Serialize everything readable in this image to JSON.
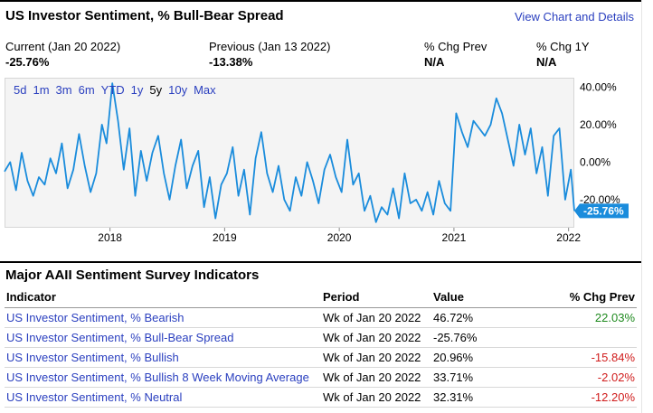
{
  "header": {
    "title": "US Investor Sentiment, % Bull-Bear Spread",
    "view_link": "View Chart and Details"
  },
  "stats": [
    {
      "label": "Current (Jan 20 2022)",
      "value": "-25.76%"
    },
    {
      "label": "Previous (Jan 13 2022)",
      "value": "-13.38%"
    },
    {
      "label": "% Chg Prev",
      "value": "N/A"
    },
    {
      "label": "% Chg 1Y",
      "value": "N/A"
    }
  ],
  "ranges": [
    "5d",
    "1m",
    "3m",
    "6m",
    "YTD",
    "1y",
    "5y",
    "10y",
    "Max"
  ],
  "active_range": "5y",
  "chart_data": {
    "type": "line",
    "x_tick_labels": [
      "2018",
      "2019",
      "2020",
      "2021",
      "2022"
    ],
    "y_tick_labels": [
      "40.00%",
      "20.00%",
      "0.00%",
      "-20.00%"
    ],
    "ylim": [
      -35,
      45
    ],
    "grid": false,
    "line_color": "#1a8cdc",
    "last_value_label": "-25.76%",
    "series": [
      {
        "x": [
          2017.08,
          2017.13,
          2017.18,
          2017.23,
          2017.28,
          2017.33,
          2017.38,
          2017.43,
          2017.48,
          2017.53,
          2017.58,
          2017.63,
          2017.68,
          2017.73,
          2017.78,
          2017.83,
          2017.88,
          2017.93,
          2017.97,
          2018.02,
          2018.07,
          2018.12,
          2018.17,
          2018.22,
          2018.27,
          2018.32,
          2018.37,
          2018.42,
          2018.47,
          2018.52,
          2018.57,
          2018.62,
          2018.67,
          2018.72,
          2018.77,
          2018.82,
          2018.87,
          2018.92,
          2018.97,
          2019.02,
          2019.07,
          2019.12,
          2019.17,
          2019.22,
          2019.27,
          2019.32,
          2019.37,
          2019.42,
          2019.47,
          2019.52,
          2019.57,
          2019.62,
          2019.67,
          2019.72,
          2019.77,
          2019.82,
          2019.87,
          2019.92,
          2019.97,
          2020.02,
          2020.07,
          2020.12,
          2020.17,
          2020.22,
          2020.27,
          2020.32,
          2020.37,
          2020.42,
          2020.47,
          2020.52,
          2020.57,
          2020.62,
          2020.67,
          2020.72,
          2020.77,
          2020.82,
          2020.87,
          2020.92,
          2020.97,
          2021.02,
          2021.07,
          2021.12,
          2021.17,
          2021.22,
          2021.27,
          2021.32,
          2021.37,
          2021.42,
          2021.47,
          2021.52,
          2021.57,
          2021.62,
          2021.67,
          2021.72,
          2021.77,
          2021.82,
          2021.87,
          2021.92,
          2021.97,
          2022.02,
          2022.05
        ],
        "values": [
          -5,
          0,
          -15,
          5,
          -10,
          -18,
          -8,
          -12,
          2,
          -6,
          10,
          -14,
          -4,
          15,
          -2,
          -16,
          -6,
          20,
          10,
          42,
          22,
          -4,
          18,
          -18,
          6,
          -10,
          5,
          14,
          -6,
          -20,
          -2,
          12,
          -14,
          -2,
          6,
          -24,
          -8,
          -30,
          -12,
          -6,
          8,
          -18,
          -4,
          -28,
          2,
          16,
          -6,
          -16,
          -2,
          -20,
          -26,
          -8,
          -18,
          0,
          -10,
          -22,
          -4,
          4,
          -8,
          -16,
          12,
          -12,
          -6,
          -26,
          -18,
          -32,
          -24,
          -28,
          -14,
          -30,
          -6,
          -22,
          -20,
          -26,
          -16,
          -28,
          -10,
          -22,
          -26,
          26,
          16,
          8,
          22,
          18,
          14,
          20,
          34,
          26,
          12,
          -2,
          20,
          4,
          18,
          -6,
          8,
          -18,
          14,
          18,
          -20,
          -4,
          -26
        ]
      }
    ]
  },
  "indicators": {
    "title": "Major AAII Sentiment Survey Indicators",
    "headers": {
      "indicator": "Indicator",
      "period": "Period",
      "value": "Value",
      "chg": "% Chg Prev"
    },
    "rows": [
      {
        "name": "US Investor Sentiment, % Bearish",
        "period": "Wk of Jan 20 2022",
        "value": "46.72%",
        "chg": "22.03%",
        "chg_sign": "pos"
      },
      {
        "name": "US Investor Sentiment, % Bull-Bear Spread",
        "period": "Wk of Jan 20 2022",
        "value": "-25.76%",
        "chg": "",
        "chg_sign": ""
      },
      {
        "name": "US Investor Sentiment, % Bullish",
        "period": "Wk of Jan 20 2022",
        "value": "20.96%",
        "chg": "-15.84%",
        "chg_sign": "neg"
      },
      {
        "name": "US Investor Sentiment, % Bullish 8 Week Moving Average",
        "period": "Wk of Jan 20 2022",
        "value": "33.71%",
        "chg": "-2.02%",
        "chg_sign": "neg"
      },
      {
        "name": "US Investor Sentiment, % Neutral",
        "period": "Wk of Jan 20 2022",
        "value": "32.31%",
        "chg": "-12.20%",
        "chg_sign": "neg"
      }
    ]
  }
}
